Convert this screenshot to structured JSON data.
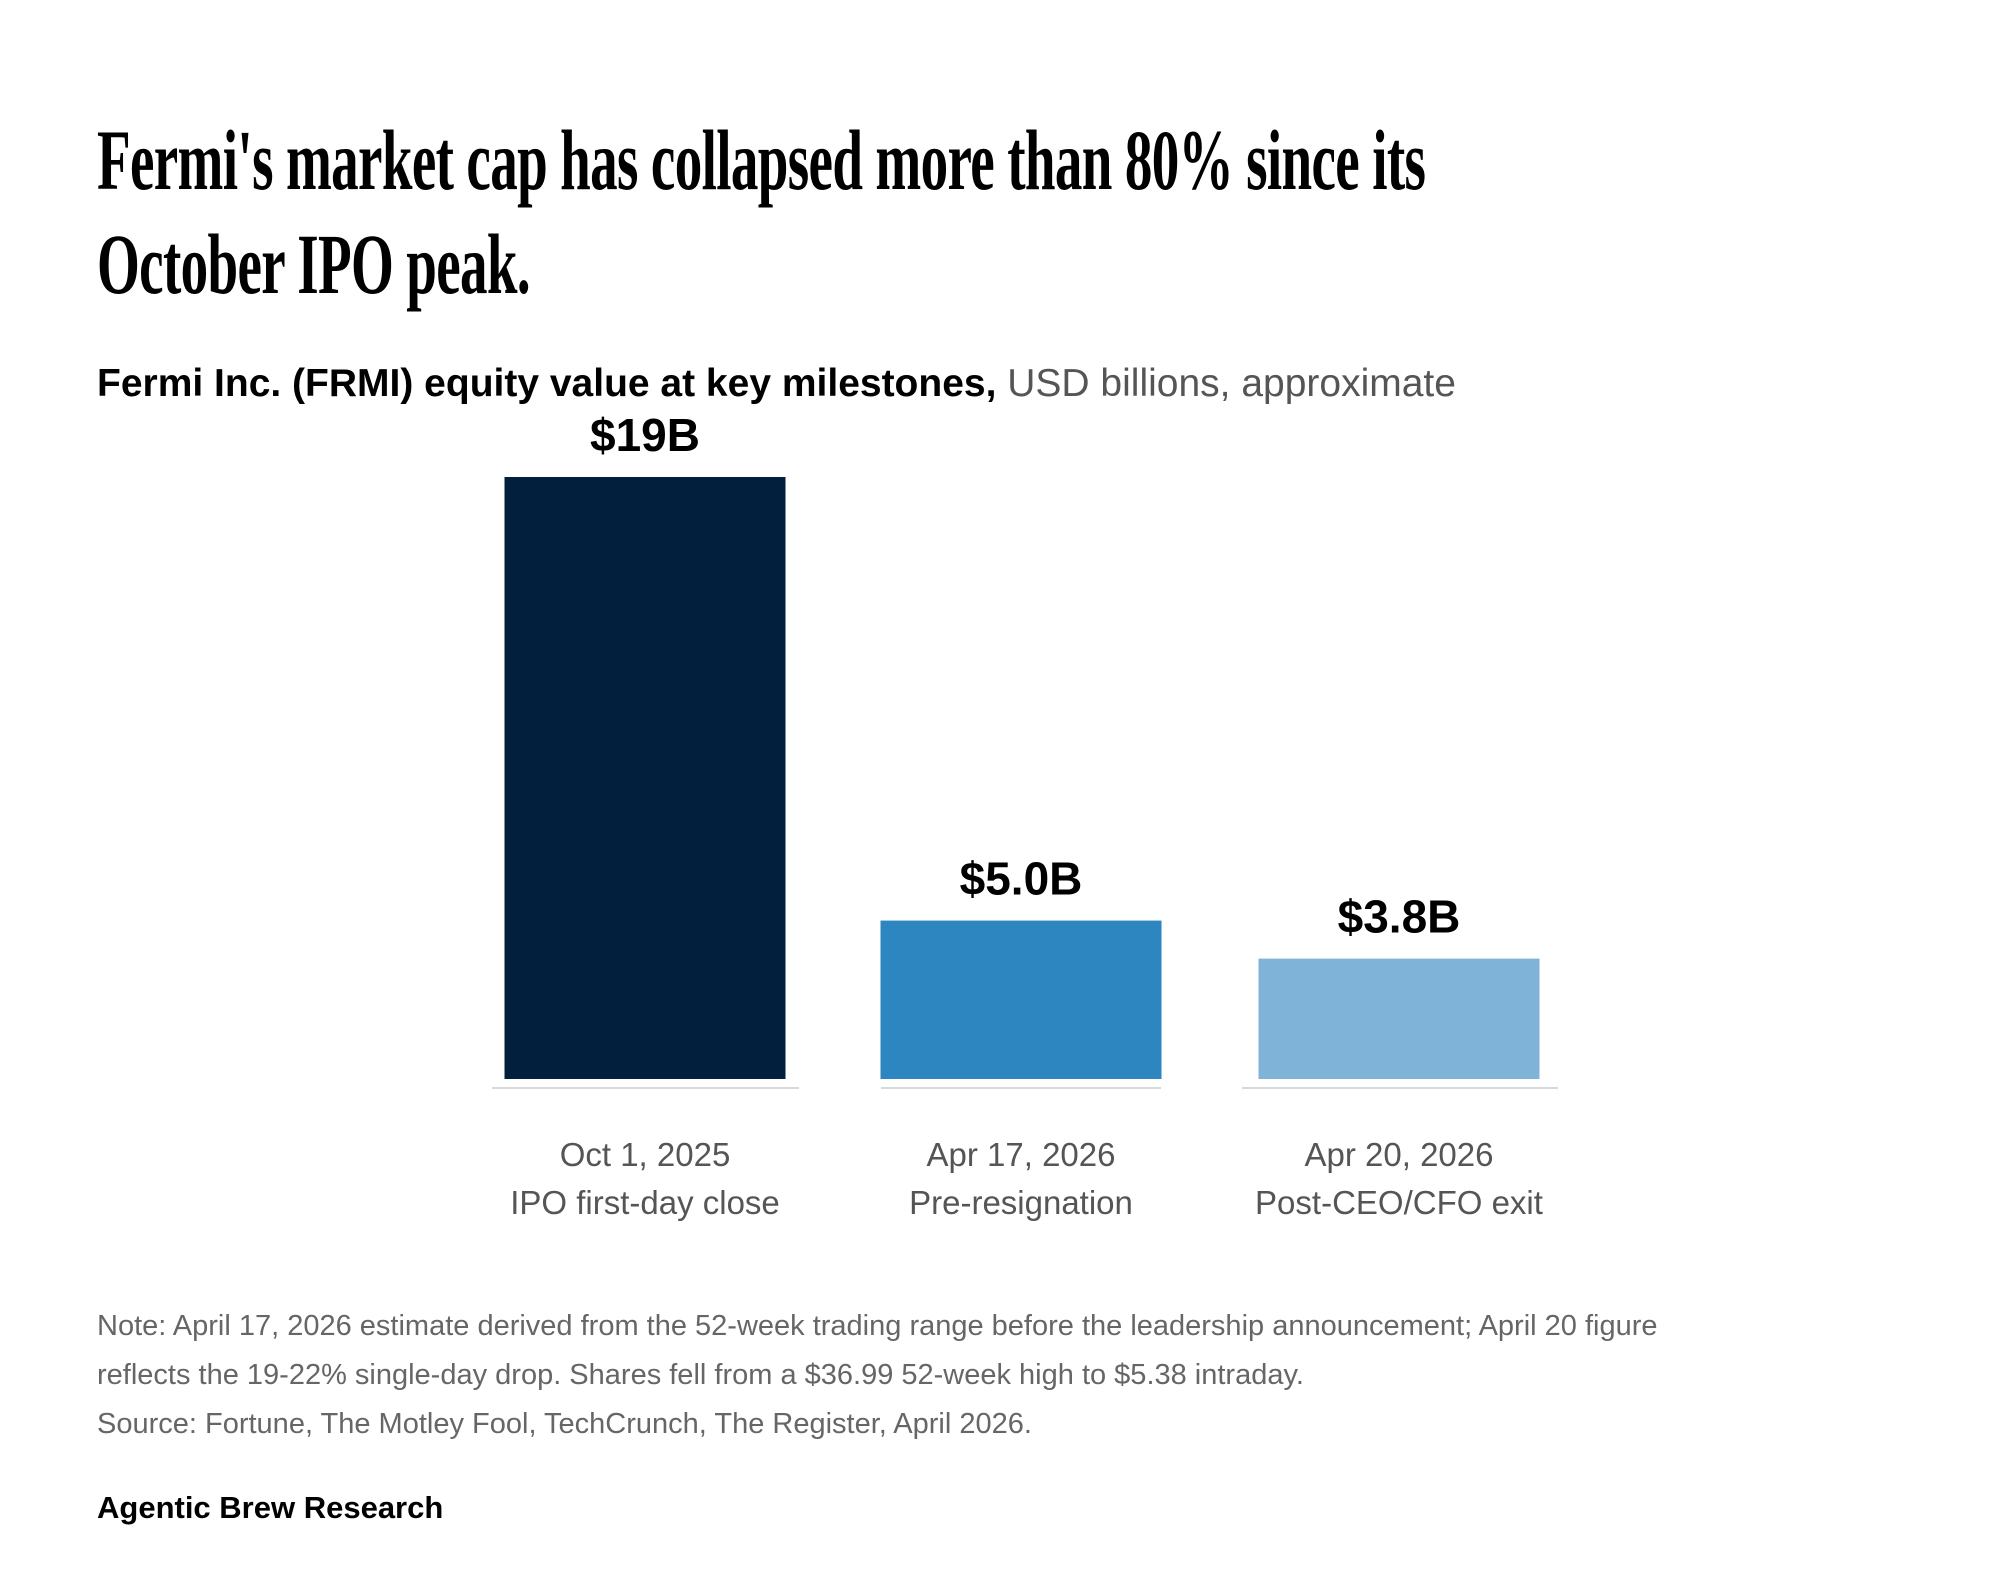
{
  "header": {
    "title_lines": [
      "Fermi's market cap has collapsed more than 80% since its",
      "October IPO peak."
    ],
    "subtitle_bold": "Fermi Inc. (FRMI) equity value at key milestones,",
    "subtitle_regular": " USD billions, approximate"
  },
  "chart_data": {
    "type": "bar",
    "title": "Fermi's market cap has collapsed more than 80% since its October IPO peak.",
    "subtitle": "Fermi Inc. (FRMI) equity value at key milestones, USD billions, approximate",
    "categories": [
      [
        "Oct 1, 2025",
        "IPO first-day close"
      ],
      [
        "Apr 17, 2026",
        "Pre-resignation"
      ],
      [
        "Apr 20, 2026",
        "Post-CEO/CFO exit"
      ]
    ],
    "values": [
      19,
      5.0,
      3.8
    ],
    "data_labels": [
      "$19B",
      "$5.0B",
      "$3.8B"
    ],
    "colors": [
      "#021f3d",
      "#2e86c1",
      "#7fb3d8"
    ],
    "baseline_color": "#d9d9d9",
    "ylim": [
      0,
      19
    ],
    "grid": false,
    "legend": "none"
  },
  "notes": [
    "Note: April 17, 2026 estimate derived from the 52-week trading range before the leadership announcement; April 20 figure",
    "reflects the 19-22% single-day drop. Shares fell from a $36.99 52-week high to $5.38 intraday.",
    "Source: Fortune, The Motley Fool, TechCrunch, The Register, April 2026."
  ],
  "footer": "Agentic Brew Research"
}
